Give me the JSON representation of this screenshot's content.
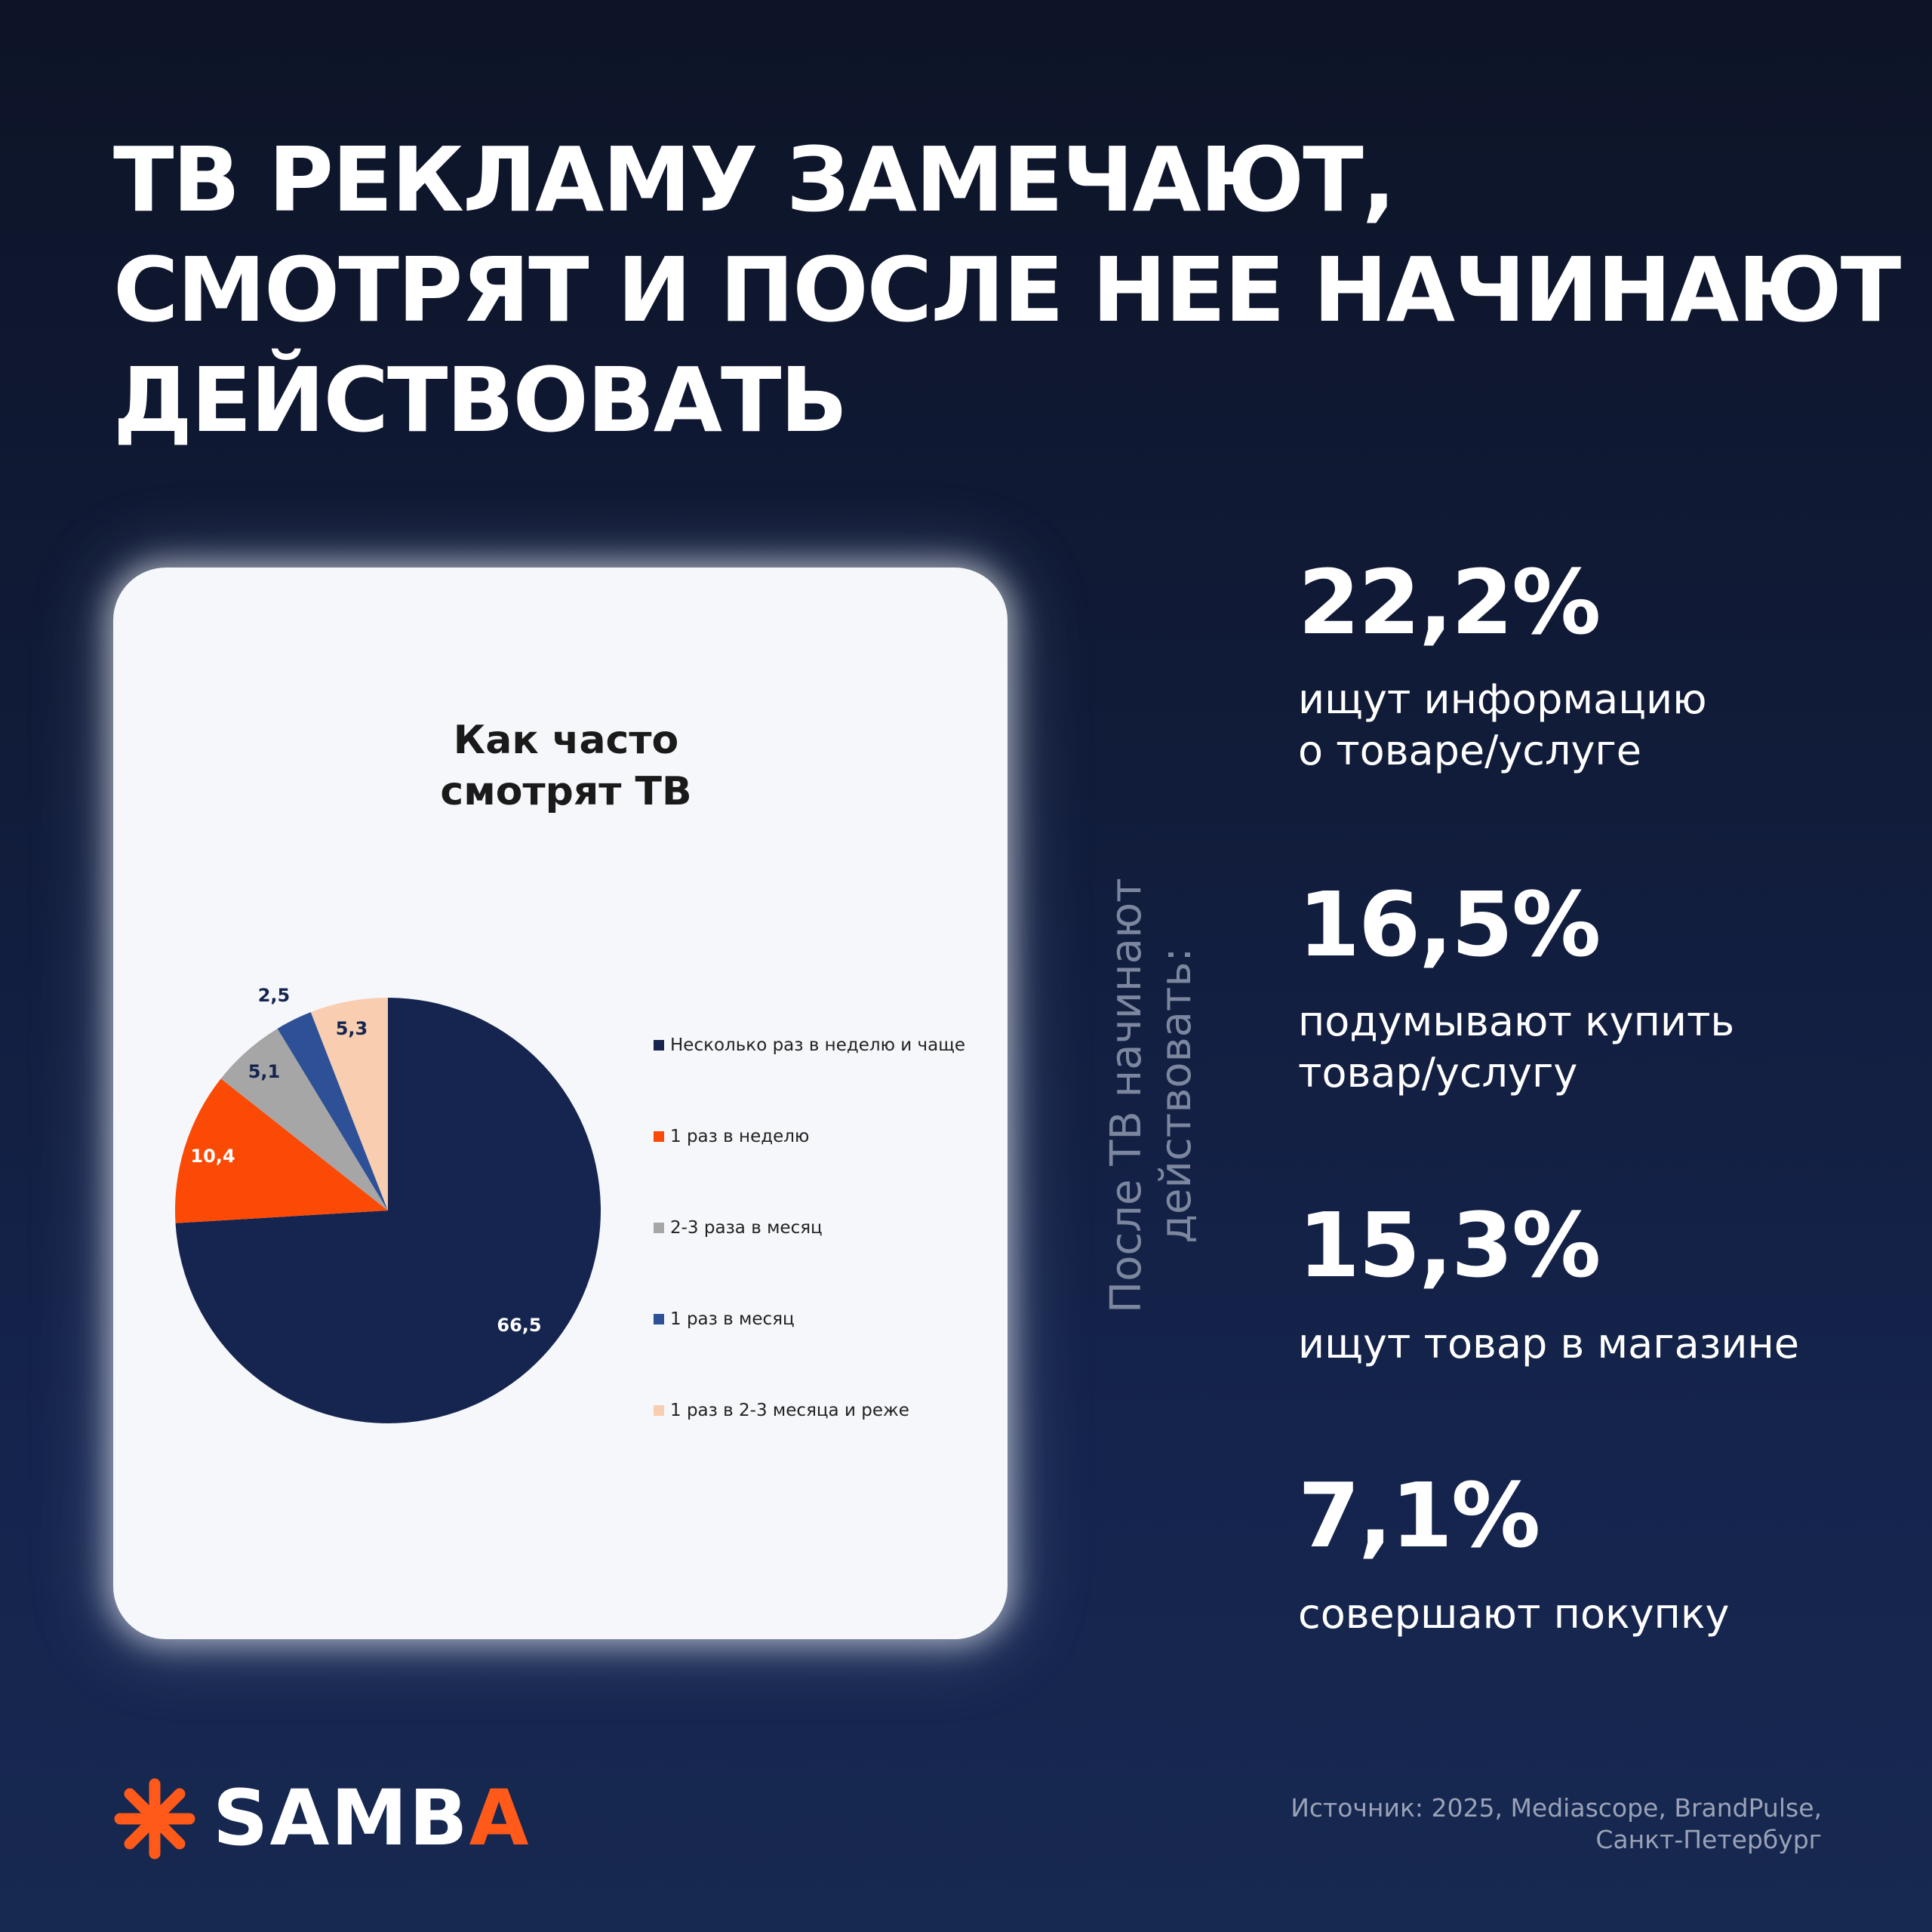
{
  "headline": {
    "line1": "ТВ РЕКЛАМУ ЗАМЕЧАЮТ,",
    "line2": "СМОТРЯТ И ПОСЛЕ НЕЕ НАЧИНАЮТ",
    "line3": "ДЕЙСТВОВАТЬ"
  },
  "chart_data": {
    "type": "pie",
    "title": "Как часто смотрят ТВ",
    "title_lines": [
      "Как часто",
      "смотрят ТВ"
    ],
    "categories": [
      "Несколько раз в неделю и чаще",
      "1 раз в неделю",
      "2-3 раза в месяц",
      "1 раз в месяц",
      "1 раз в 2-3 месяца и реже"
    ],
    "values": [
      66.5,
      10.4,
      5.1,
      2.5,
      5.3
    ],
    "value_labels": [
      "66,5",
      "10,4",
      "5,1",
      "2,5",
      "5,3"
    ],
    "colors": [
      "#15254f",
      "#fb4a06",
      "#a6a6a6",
      "#2d5096",
      "#f8cdb0"
    ],
    "legend_position": "right"
  },
  "side_label": {
    "line1": "После ТВ начинают",
    "line2": "действовать:"
  },
  "stats": [
    {
      "value": "22,2%",
      "lines": [
        "ищут информацию",
        "о товаре/услуге"
      ]
    },
    {
      "value": "16,5%",
      "lines": [
        "подумывают купить",
        "товар/услугу"
      ]
    },
    {
      "value": "15,3%",
      "lines": [
        "ищут товар в магазине"
      ]
    },
    {
      "value": "7,1%",
      "lines": [
        "совершают покупку"
      ]
    }
  ],
  "brand": {
    "name_main": "SAMB",
    "name_accent": "A",
    "icon": "asterisk-logo-icon",
    "accent_color": "#ff5a1a"
  },
  "source": {
    "line1": "Источник: 2025, Mediascope, BrandPulse,",
    "line2": "Санкт-Петербург"
  }
}
